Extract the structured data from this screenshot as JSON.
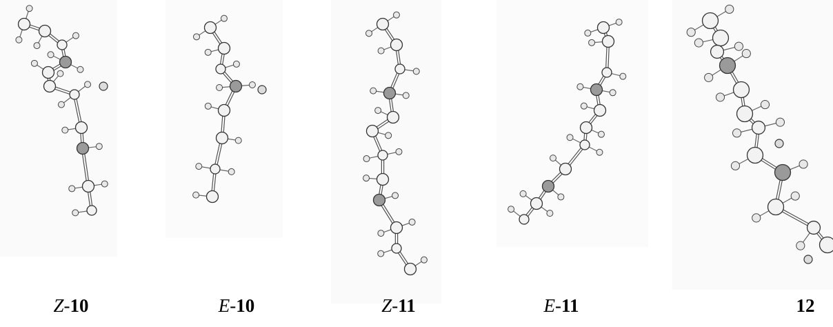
{
  "labels": [
    {
      "prefix": "Z-",
      "number": "10"
    },
    {
      "prefix": "E-",
      "number": "10"
    },
    {
      "prefix": "Z-",
      "number": "11"
    },
    {
      "prefix": "E-",
      "number": "11"
    },
    {
      "number": "12"
    }
  ]
}
